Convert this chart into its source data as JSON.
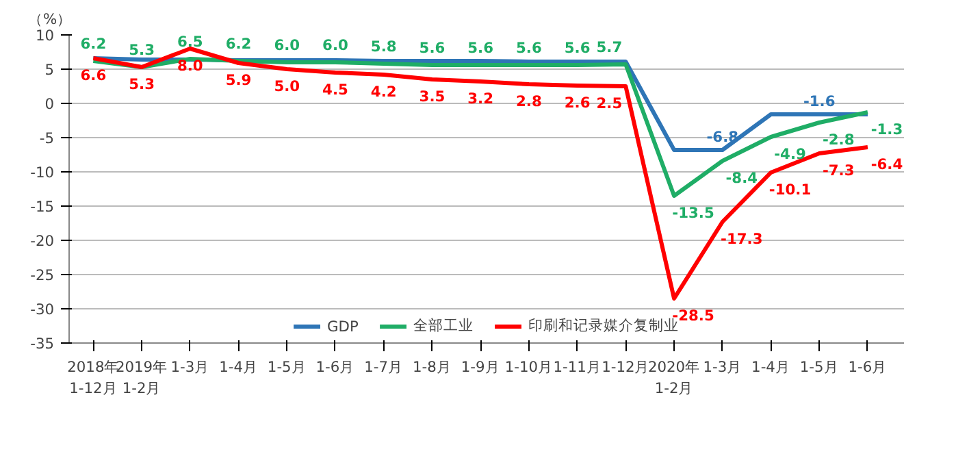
{
  "chart_data": {
    "type": "line",
    "ylabel": "（%）",
    "categories": [
      "2018年\n1-12月",
      "2019年\n1-2月",
      "1-3月",
      "1-4月",
      "1-5月",
      "1-6月",
      "1-7月",
      "1-8月",
      "1-9月",
      "1-10月",
      "1-11月",
      "1-12月",
      "2020年\n1-2月",
      "1-3月",
      "1-4月",
      "1-5月",
      "1-6月"
    ],
    "series": [
      {
        "name": "GDP",
        "color": "#2e75b6",
        "values": [
          6.6,
          6.4,
          6.4,
          6.3,
          6.3,
          6.3,
          6.2,
          6.2,
          6.2,
          6.1,
          6.1,
          6.1,
          -6.8,
          -6.8,
          -1.6,
          -1.6,
          -1.6
        ],
        "value_labels": [
          null,
          null,
          null,
          null,
          null,
          null,
          null,
          null,
          null,
          null,
          null,
          null,
          null,
          "-6.8",
          null,
          "-1.6",
          null
        ]
      },
      {
        "name": "全部工业",
        "color": "#1fad66",
        "values": [
          6.2,
          5.3,
          6.5,
          6.2,
          6.0,
          6.0,
          5.8,
          5.6,
          5.6,
          5.6,
          5.6,
          5.7,
          -13.5,
          -8.4,
          -4.9,
          -2.8,
          -1.3
        ],
        "value_labels": [
          "6.2",
          "5.3",
          "6.5",
          "6.2",
          "6.0",
          "6.0",
          "5.8",
          "5.6",
          "5.6",
          "5.6",
          "5.6",
          "5.7",
          "-13.5",
          "-8.4",
          "-4.9",
          "-2.8",
          "-1.3"
        ]
      },
      {
        "name": "印刷和记录媒介复制业",
        "color": "#ff0000",
        "values": [
          6.6,
          5.3,
          8.0,
          5.9,
          5.0,
          4.5,
          4.2,
          3.5,
          3.2,
          2.8,
          2.6,
          2.5,
          -28.5,
          -17.3,
          -10.1,
          -7.3,
          -6.4
        ],
        "value_labels": [
          "6.6",
          "5.3",
          "8.0",
          "5.9",
          "5.0",
          "4.5",
          "4.2",
          "3.5",
          "3.2",
          "2.8",
          "2.6",
          "2.5",
          "-28.5",
          "-17.3",
          "-10.1",
          "-7.3",
          "-6.4"
        ]
      }
    ],
    "ylim": [
      -35,
      10
    ],
    "yticks": [
      -35,
      -30,
      -25,
      -20,
      -15,
      -10,
      -5,
      0,
      5,
      10
    ],
    "grid": "y",
    "legend": "bottom",
    "line_style": "solid",
    "marker": "none"
  }
}
